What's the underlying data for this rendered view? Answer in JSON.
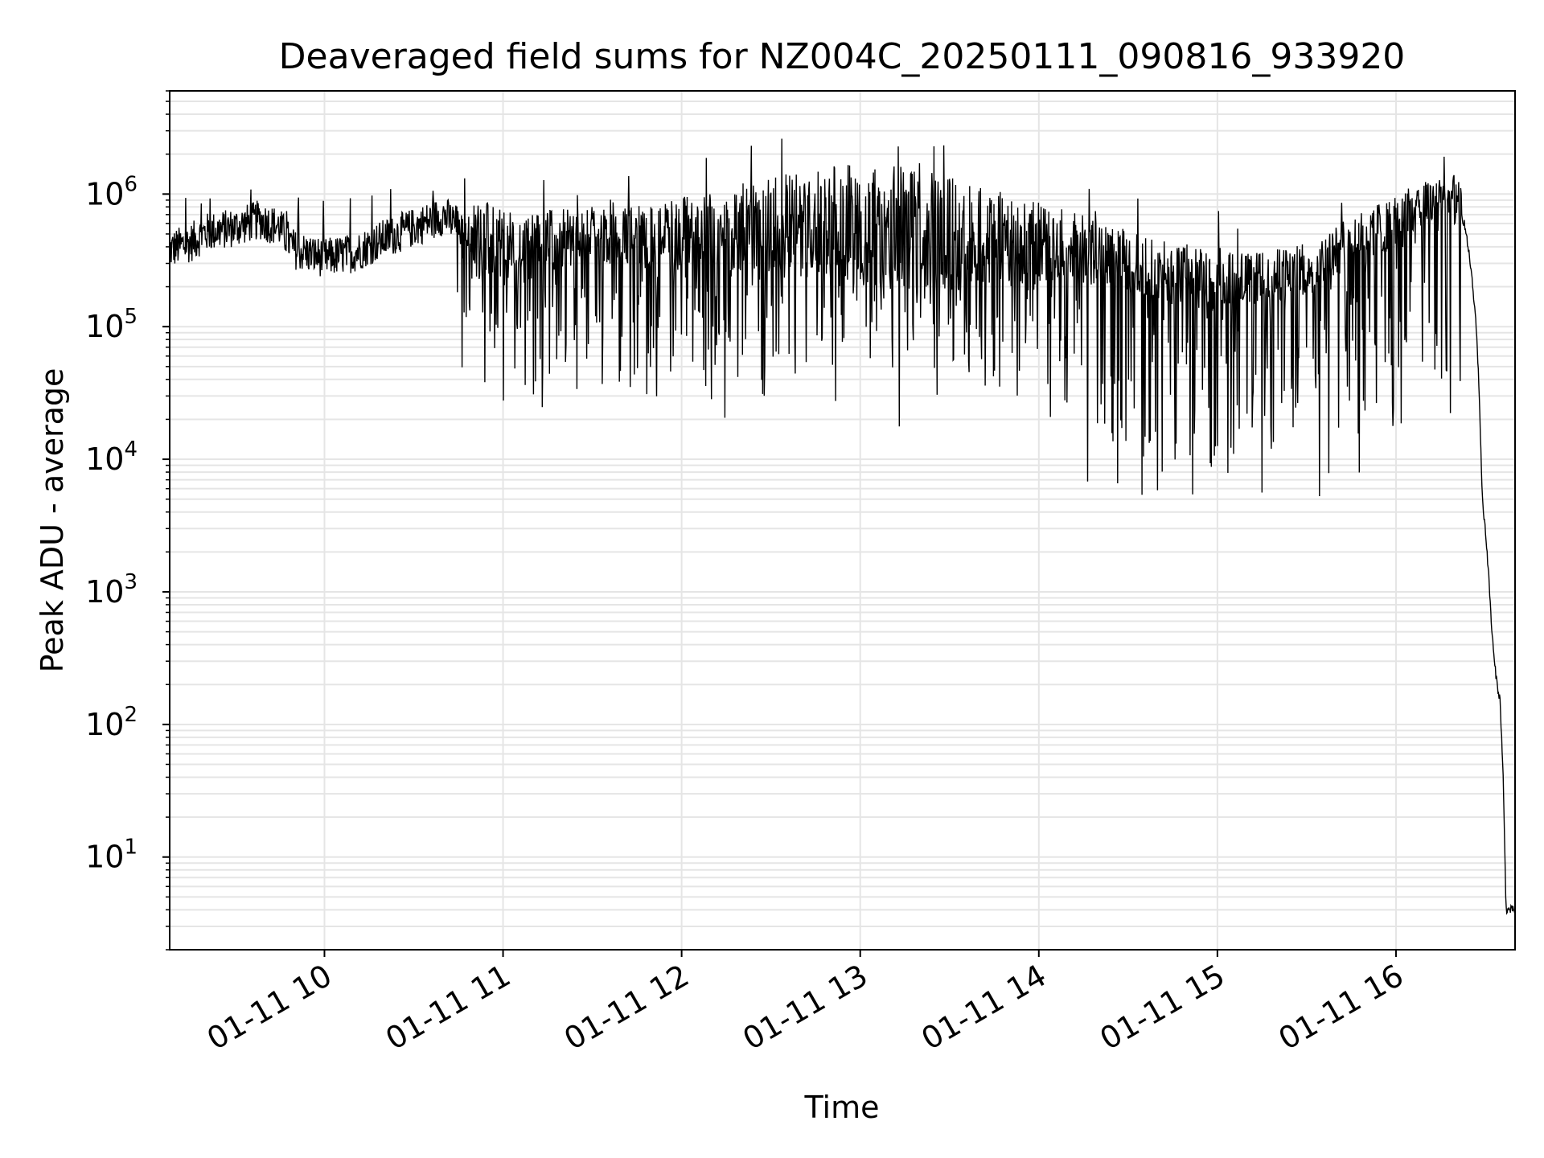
{
  "chart_data": {
    "type": "line",
    "title": "Deaveraged field sums for NZ004C_20250111_090816_933920",
    "xlabel": "Time",
    "ylabel": "Peak ADU - average",
    "yscale": "log",
    "ylim": [
      2,
      6000000
    ],
    "xlim": [
      "2025-01-11 09:08",
      "2025-01-11 16:40"
    ],
    "grid": true,
    "line_color": "#000000",
    "grid_color": "#e5e5e5",
    "x_ticks": [
      {
        "t": "2025-01-11 10:00",
        "label": "01-11 10"
      },
      {
        "t": "2025-01-11 11:00",
        "label": "01-11 11"
      },
      {
        "t": "2025-01-11 12:00",
        "label": "01-11 12"
      },
      {
        "t": "2025-01-11 13:00",
        "label": "01-11 13"
      },
      {
        "t": "2025-01-11 14:00",
        "label": "01-11 14"
      },
      {
        "t": "2025-01-11 15:00",
        "label": "01-11 15"
      },
      {
        "t": "2025-01-11 16:00",
        "label": "01-11 16"
      }
    ],
    "y_ticks": [
      {
        "value": 10,
        "base": "10",
        "exp": "1"
      },
      {
        "value": 100,
        "base": "10",
        "exp": "2"
      },
      {
        "value": 1000,
        "base": "10",
        "exp": "3"
      },
      {
        "value": 10000,
        "base": "10",
        "exp": "4"
      },
      {
        "value": 100000,
        "base": "10",
        "exp": "5"
      },
      {
        "value": 1000000,
        "base": "10",
        "exp": "6"
      }
    ],
    "series": [
      {
        "points": [
          [
            "2025-01-11 09:08",
            380000
          ],
          [
            "2025-01-11 09:15",
            430000
          ],
          [
            "2025-01-11 09:20",
            510000
          ],
          [
            "2025-01-11 09:30",
            560000
          ],
          [
            "2025-01-11 09:38",
            640000
          ],
          [
            "2025-01-11 09:45",
            560000
          ],
          [
            "2025-01-11 09:50",
            380000
          ],
          [
            "2025-01-11 10:00",
            330000
          ],
          [
            "2025-01-11 10:10",
            360000
          ],
          [
            "2025-01-11 10:20",
            460000
          ],
          [
            "2025-01-11 10:30",
            560000
          ],
          [
            "2025-01-11 10:40",
            690000
          ],
          [
            "2025-01-11 10:50",
            480000
          ],
          [
            "2025-01-11 11:00",
            380000
          ],
          [
            "2025-01-11 11:10",
            410000
          ],
          [
            "2025-01-11 11:20",
            480000
          ],
          [
            "2025-01-11 11:30",
            530000
          ],
          [
            "2025-01-11 11:40",
            500000
          ],
          [
            "2025-01-11 11:50",
            460000
          ],
          [
            "2025-01-11 12:00",
            500000
          ],
          [
            "2025-01-11 12:15",
            530000
          ],
          [
            "2025-01-11 12:30",
            560000
          ],
          [
            "2025-01-11 12:45",
            600000
          ],
          [
            "2025-01-11 13:00",
            590000
          ],
          [
            "2025-01-11 13:15",
            560000
          ],
          [
            "2025-01-11 13:30",
            500000
          ],
          [
            "2025-01-11 13:45",
            460000
          ],
          [
            "2025-01-11 14:00",
            430000
          ],
          [
            "2025-01-11 14:15",
            380000
          ],
          [
            "2025-01-11 14:30",
            310000
          ],
          [
            "2025-01-11 14:45",
            250000
          ],
          [
            "2025-01-11 15:00",
            230000
          ],
          [
            "2025-01-11 15:15",
            230000
          ],
          [
            "2025-01-11 15:30",
            270000
          ],
          [
            "2025-01-11 15:45",
            430000
          ],
          [
            "2025-01-11 16:00",
            640000
          ],
          [
            "2025-01-11 16:10",
            820000
          ],
          [
            "2025-01-11 16:15",
            950000
          ],
          [
            "2025-01-11 16:20",
            900000
          ],
          [
            "2025-01-11 16:23",
            600000
          ],
          [
            "2025-01-11 16:25",
            300000
          ],
          [
            "2025-01-11 16:27",
            100000
          ],
          [
            "2025-01-11 16:28",
            30000
          ],
          [
            "2025-01-11 16:29",
            5000
          ],
          [
            "2025-01-11 16:30",
            3000
          ],
          [
            "2025-01-11 16:31",
            1500
          ],
          [
            "2025-01-11 16:32",
            600
          ],
          [
            "2025-01-11 16:33",
            300
          ],
          [
            "2025-01-11 16:34",
            200
          ],
          [
            "2025-01-11 16:35",
            150
          ],
          [
            "2025-01-11 16:36",
            40
          ],
          [
            "2025-01-11 16:37",
            4
          ],
          [
            "2025-01-11 16:40",
            4
          ]
        ]
      }
    ]
  }
}
